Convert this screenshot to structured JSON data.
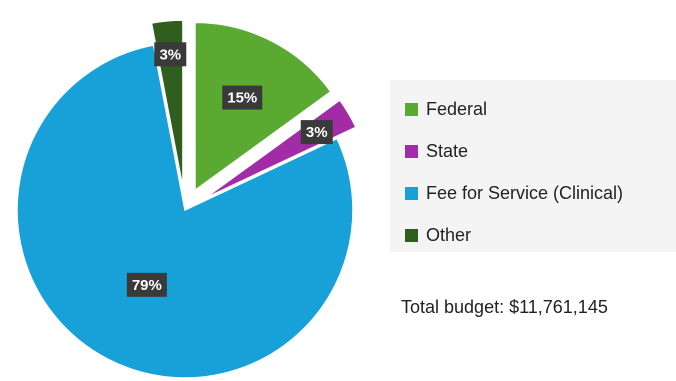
{
  "chart_data": {
    "type": "pie",
    "title": "",
    "slices": [
      {
        "name": "Federal",
        "value": 15,
        "label": "15%",
        "color": "#5aaa32",
        "exploded": true
      },
      {
        "name": "State",
        "value": 3,
        "label": "3%",
        "color": "#a12ca6",
        "exploded": true
      },
      {
        "name": "Fee for Service (Clinical)",
        "value": 79,
        "label": "79%",
        "color": "#18a0d8",
        "exploded": false
      },
      {
        "name": "Other",
        "value": 3,
        "label": "3%",
        "color": "#2f5e1f",
        "exploded": true
      }
    ],
    "legend_position": "right",
    "note": "Total budget: $11,761,145"
  }
}
